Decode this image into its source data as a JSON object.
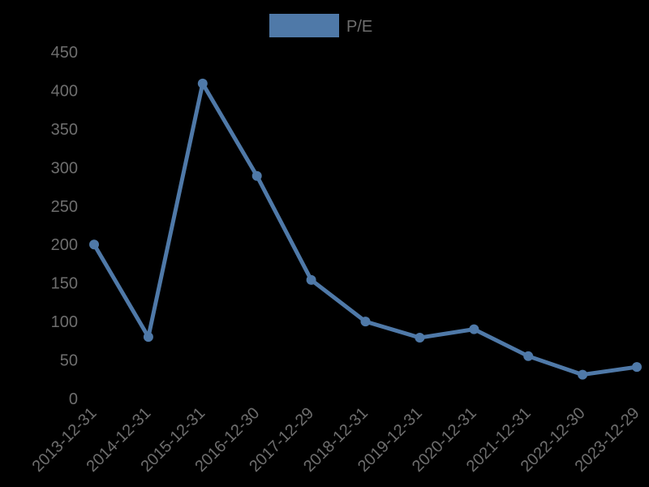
{
  "chart_data": {
    "type": "line",
    "title": "",
    "xlabel": "",
    "ylabel": "",
    "categories": [
      "2013-12-31",
      "2014-12-31",
      "2015-12-31",
      "2016-12-30",
      "2017-12-29",
      "2018-12-31",
      "2019-12-31",
      "2020-12-31",
      "2021-12-31",
      "2022-12-30",
      "2023-12-29"
    ],
    "series": [
      {
        "name": "P/E",
        "color": "#4f79a8",
        "values": [
          200,
          80,
          409,
          289,
          154,
          100,
          79,
          90,
          55,
          31,
          41
        ]
      }
    ],
    "yticks": [
      0,
      50,
      100,
      150,
      200,
      250,
      300,
      350,
      400,
      450
    ],
    "ylim": [
      0,
      450
    ],
    "grid": false,
    "legend_position": "top-center",
    "markers": true
  },
  "legend": {
    "label": "P/E",
    "color": "#4f79a8"
  },
  "colors": {
    "background": "#000000",
    "text": "#6e6e6e",
    "series": "#4f79a8"
  }
}
